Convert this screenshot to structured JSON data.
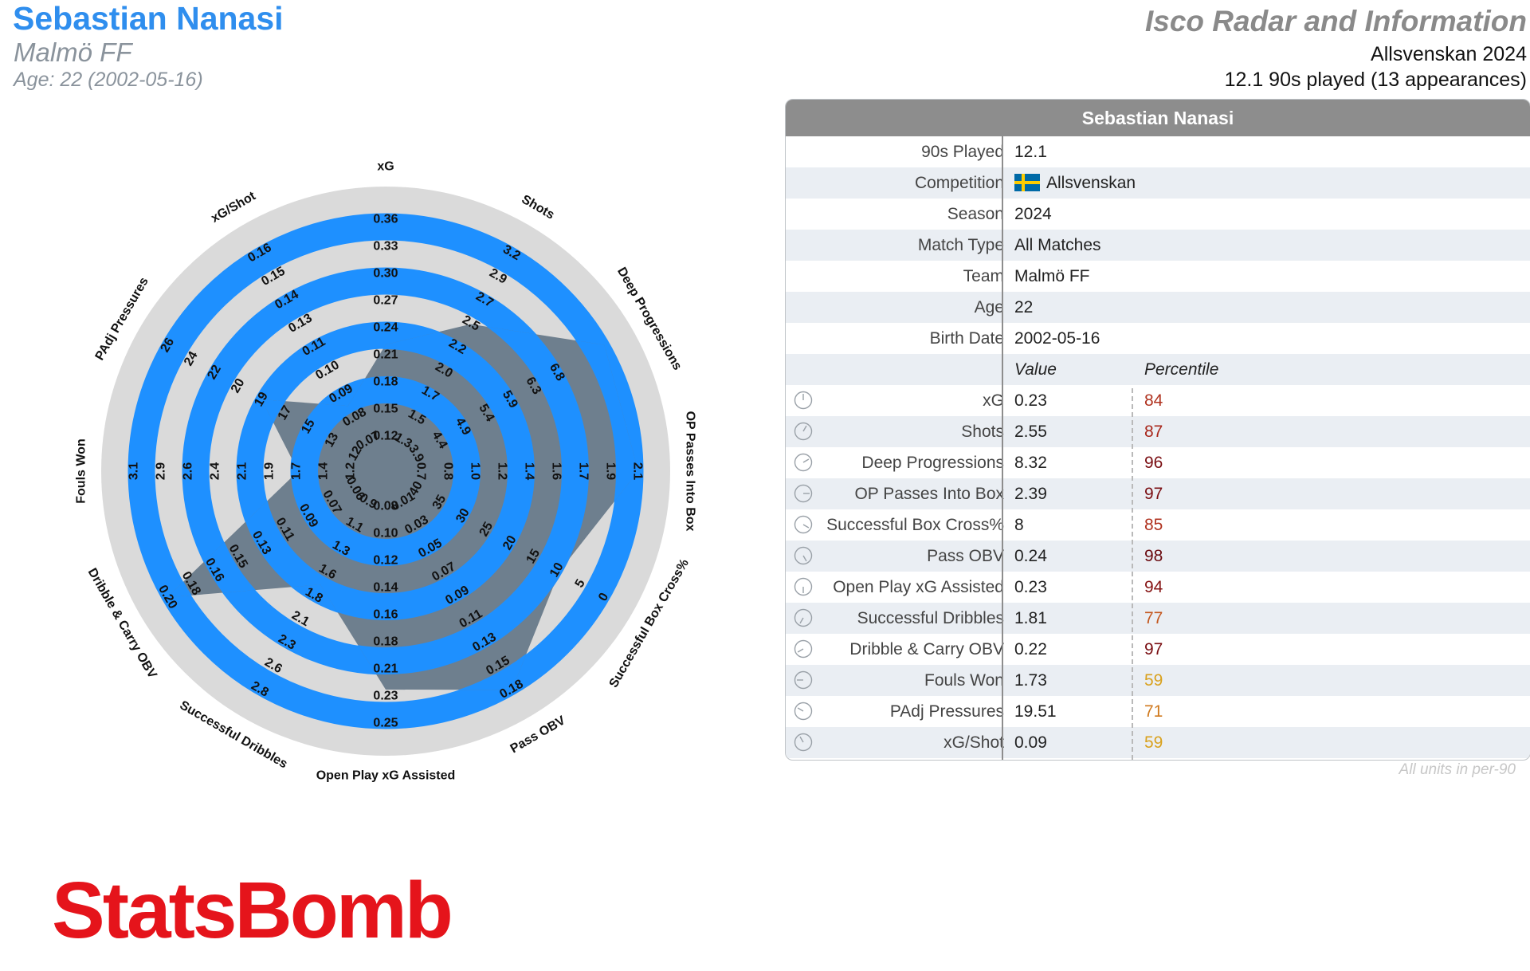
{
  "header": {
    "player_name": "Sebastian Nanasi",
    "team": "Malmö FF",
    "age_line": "Age: 22 (2002-05-16)",
    "title": "Isco Radar and Information",
    "competition_season": "Allsvenskan 2024",
    "played_line": "12.1 90s played (13 appearances)"
  },
  "colors": {
    "brand_blue": "#2f8eee",
    "radar_fill": "#1e90ff",
    "ring_grey": "#dadada",
    "polygon_slate": "#6e7f8e",
    "header_grey": "#8d8d8d",
    "logo_red": "#e5141b",
    "flag_blue": "#006aa7",
    "flag_yellow": "#fecc00"
  },
  "chart_data": {
    "type": "radar",
    "axes": [
      {
        "label": "xG",
        "ticks": [
          "0.12",
          "0.15",
          "0.18",
          "0.21",
          "0.24",
          "0.27",
          "0.30",
          "0.33",
          "0.36"
        ],
        "value": 0.23,
        "range": [
          0.12,
          0.36
        ]
      },
      {
        "label": "Shots",
        "ticks": [
          "1.3",
          "1.5",
          "1.7",
          "2.0",
          "2.2",
          "2.5",
          "2.7",
          "2.9",
          "3.2"
        ],
        "value": 2.55,
        "range": [
          1.3,
          3.2
        ]
      },
      {
        "label": "Deep Progressions",
        "ticks": [
          "3.9",
          "4.4",
          "4.9",
          "5.4",
          "5.9",
          "6.3",
          "6.8"
        ],
        "value": 8.32,
        "range": [
          2.9,
          6.8
        ]
      },
      {
        "label": "OP Passes Into Box",
        "ticks": [
          "0.7",
          "0.8",
          "1.0",
          "1.2",
          "1.4",
          "1.6",
          "1.7",
          "1.9",
          "2.1"
        ],
        "value": 2.39,
        "range": [
          0.7,
          2.1
        ]
      },
      {
        "label": "Successful Box Cross%",
        "ticks": [
          "40",
          "35",
          "30",
          "25",
          "20",
          "15",
          "10",
          "5",
          "0"
        ],
        "value": 8,
        "range": [
          40,
          0
        ]
      },
      {
        "label": "Pass OBV",
        "ticks": [
          "0.01",
          "0.03",
          "0.05",
          "0.07",
          "0.09",
          "0.11",
          "0.13",
          "0.15",
          "0.18"
        ],
        "value": 0.24,
        "range": [
          0.01,
          0.18
        ]
      },
      {
        "label": "Open Play xG Assisted",
        "ticks": [
          "0.08",
          "0.10",
          "0.12",
          "0.14",
          "0.16",
          "0.18",
          "0.21",
          "0.23",
          "0.25"
        ],
        "value": 0.23,
        "range": [
          0.08,
          0.25
        ]
      },
      {
        "label": "Successful Dribbles",
        "ticks": [
          "0.9",
          "1.1",
          "1.3",
          "1.6",
          "1.8",
          "2.1",
          "2.3",
          "2.6",
          "2.8"
        ],
        "value": 1.81,
        "range": [
          0.9,
          2.8
        ]
      },
      {
        "label": "Dribble & Carry OBV",
        "ticks": [
          "0.06",
          "0.07",
          "0.09",
          "0.11",
          "0.13",
          "0.15",
          "0.16",
          "0.18",
          "0.20"
        ],
        "value": 0.22,
        "range": [
          0.06,
          0.2
        ]
      },
      {
        "label": "Fouls Won",
        "ticks": [
          "1.2",
          "1.4",
          "1.7",
          "1.9",
          "2.1",
          "2.4",
          "2.6",
          "2.9",
          "3.1"
        ],
        "value": 1.73,
        "range": [
          1.2,
          3.1
        ]
      },
      {
        "label": "PAdj Pressures",
        "ticks": [
          "12",
          "13",
          "15",
          "17",
          "19",
          "20",
          "22",
          "24",
          "26"
        ],
        "value": 19.51,
        "range": [
          12,
          26
        ]
      },
      {
        "label": "xG/Shot",
        "ticks": [
          "0.07",
          "0.08",
          "0.09",
          "0.10",
          "0.11",
          "0.13",
          "0.14",
          "0.15",
          "0.16"
        ],
        "value": 0.09,
        "range": [
          0.07,
          0.16
        ]
      }
    ]
  },
  "table": {
    "heading": "Sebastian Nanasi",
    "info_rows": [
      {
        "label": "90s Played",
        "value": "12.1"
      },
      {
        "label": "Competition",
        "value": "Allsvenskan",
        "flag": "sweden-flag-icon"
      },
      {
        "label": "Season",
        "value": "2024"
      },
      {
        "label": "Match Type",
        "value": "All Matches"
      },
      {
        "label": "Team",
        "value": "Malmö FF"
      },
      {
        "label": "Age",
        "value": "22"
      },
      {
        "label": "Birth Date",
        "value": "2002-05-16"
      }
    ],
    "value_header": "Value",
    "percentile_header": "Percentile",
    "metric_rows": [
      {
        "label": "xG",
        "value": "0.23",
        "percentile": "84",
        "pct_color": "#b0321f"
      },
      {
        "label": "Shots",
        "value": "2.55",
        "percentile": "87",
        "pct_color": "#a8261a"
      },
      {
        "label": "Deep Progressions",
        "value": "8.32",
        "percentile": "96",
        "pct_color": "#7a0e12"
      },
      {
        "label": "OP Passes Into Box",
        "value": "2.39",
        "percentile": "97",
        "pct_color": "#7a0e12"
      },
      {
        "label": "Successful Box Cross%",
        "value": "8",
        "percentile": "85",
        "pct_color": "#b0321f"
      },
      {
        "label": "Pass OBV",
        "value": "0.24",
        "percentile": "98",
        "pct_color": "#6a0a0f"
      },
      {
        "label": "Open Play xG Assisted",
        "value": "0.23",
        "percentile": "94",
        "pct_color": "#861414"
      },
      {
        "label": "Successful Dribbles",
        "value": "1.81",
        "percentile": "77",
        "pct_color": "#c4571e"
      },
      {
        "label": "Dribble & Carry OBV",
        "value": "0.22",
        "percentile": "97",
        "pct_color": "#7a0e12"
      },
      {
        "label": "Fouls Won",
        "value": "1.73",
        "percentile": "59",
        "pct_color": "#d9a11d"
      },
      {
        "label": "PAdj Pressures",
        "value": "19.51",
        "percentile": "71",
        "pct_color": "#d07a1f"
      },
      {
        "label": "xG/Shot",
        "value": "0.09",
        "percentile": "59",
        "pct_color": "#d9a11d"
      }
    ]
  },
  "footnote": "All units in per-90",
  "logo_text": "StatsBomb"
}
